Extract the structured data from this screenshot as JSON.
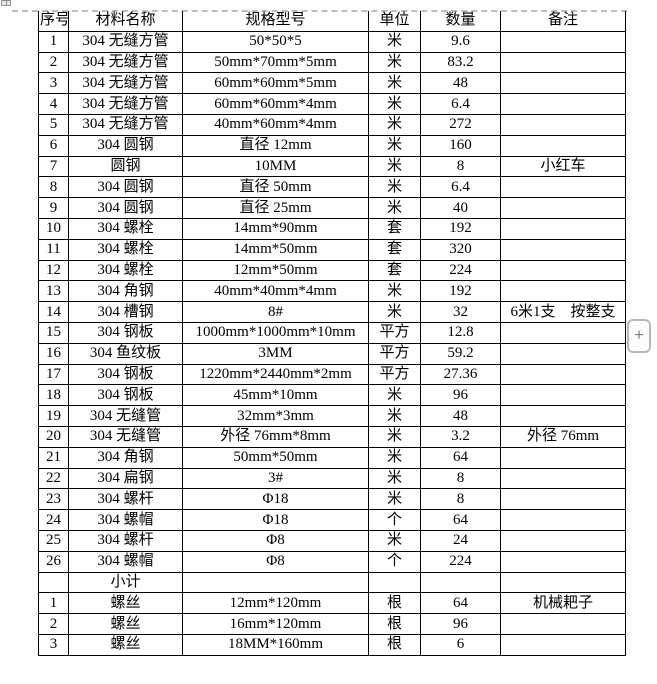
{
  "page": {
    "background": "#ffffff"
  },
  "colors": {
    "table_border": "#000000",
    "text": "#000000",
    "dashed_line": "#bcbcbc",
    "insert_button_border": "#b9b9b9",
    "insert_button_text": "#7a7a7a"
  },
  "icons": {
    "table_move_handle": "move-cross-icon"
  },
  "insert_control": {
    "label": "+"
  },
  "table": {
    "headers": [
      "序号",
      "材料名称",
      "规格型号",
      "单位",
      "数量",
      "备注"
    ],
    "column_keys": [
      "seq",
      "material",
      "spec",
      "unit",
      "qty",
      "note"
    ],
    "rows": [
      [
        "1",
        "304 无缝方管",
        "50*50*5",
        "米",
        "9.6",
        ""
      ],
      [
        "2",
        "304 无缝方管",
        "50mm*70mm*5mm",
        "米",
        "83.2",
        ""
      ],
      [
        "3",
        "304 无缝方管",
        "60mm*60mm*5mm",
        "米",
        "48",
        ""
      ],
      [
        "4",
        "304 无缝方管",
        "60mm*60mm*4mm",
        "米",
        "6.4",
        ""
      ],
      [
        "5",
        "304 无缝方管",
        "40mm*60mm*4mm",
        "米",
        "272",
        ""
      ],
      [
        "6",
        "304 圆钢",
        "直径 12mm",
        "米",
        "160",
        ""
      ],
      [
        "7",
        "圆钢",
        "10MM",
        "米",
        "8",
        "小红车"
      ],
      [
        "8",
        "304 圆钢",
        "直径 50mm",
        "米",
        "6.4",
        ""
      ],
      [
        "9",
        "304 圆钢",
        "直径 25mm",
        "米",
        "40",
        ""
      ],
      [
        "10",
        "304 螺栓",
        "14mm*90mm",
        "套",
        "192",
        ""
      ],
      [
        "11",
        "304 螺栓",
        "14mm*50mm",
        "套",
        "320",
        ""
      ],
      [
        "12",
        "304 螺栓",
        "12mm*50mm",
        "套",
        "224",
        ""
      ],
      [
        "13",
        "304 角钢",
        "40mm*40mm*4mm",
        "米",
        "192",
        ""
      ],
      [
        "14",
        "304 槽钢",
        "8#",
        "米",
        "32",
        "6米1支　按整支"
      ],
      [
        "15",
        "304 钢板",
        "1000mm*1000mm*10mm",
        "平方",
        "12.8",
        ""
      ],
      [
        "16",
        "304 鱼纹板",
        "3MM",
        "平方",
        "59.2",
        ""
      ],
      [
        "17",
        "304 钢板",
        "1220mm*2440mm*2mm",
        "平方",
        "27.36",
        ""
      ],
      [
        "18",
        "304 钢板",
        "45mm*10mm",
        "米",
        "96",
        ""
      ],
      [
        "19",
        "304 无缝管",
        "32mm*3mm",
        "米",
        "48",
        ""
      ],
      [
        "20",
        "304 无缝管",
        "外径 76mm*8mm",
        "米",
        "3.2",
        "外径 76mm"
      ],
      [
        "21",
        "304 角钢",
        "50mm*50mm",
        "米",
        "64",
        ""
      ],
      [
        "22",
        "304 扁钢",
        "3#",
        "米",
        "8",
        ""
      ],
      [
        "23",
        "304 螺杆",
        "Φ18",
        "米",
        "8",
        ""
      ],
      [
        "24",
        "304 螺帽",
        "Φ18",
        "个",
        "64",
        ""
      ],
      [
        "25",
        "304 螺杆",
        "Φ8",
        "米",
        "24",
        ""
      ],
      [
        "26",
        "304 螺帽",
        "Φ8",
        "个",
        "224",
        ""
      ],
      [
        "",
        "小计",
        "",
        "",
        "",
        ""
      ],
      [
        "1",
        "螺丝",
        "12mm*120mm",
        "根",
        "64",
        "机械耙子"
      ],
      [
        "2",
        "螺丝",
        "16mm*120mm",
        "根",
        "96",
        ""
      ],
      [
        "3",
        "螺丝",
        "18MM*160mm",
        "根",
        "6",
        ""
      ]
    ]
  }
}
